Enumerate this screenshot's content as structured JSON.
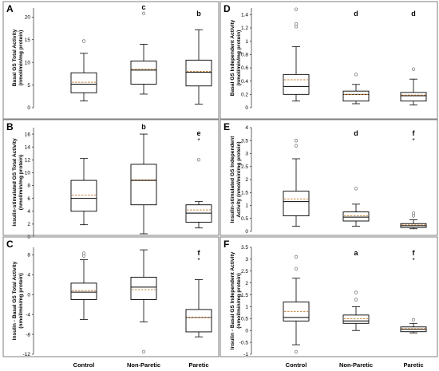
{
  "chart_data": [
    {
      "panel": "A",
      "type": "box",
      "ylabel": [
        "Basal GS Total Activity",
        "(nmol/min/mg protein)"
      ],
      "ylim": [
        0,
        22
      ],
      "yticks": [
        0,
        5,
        10,
        15,
        20
      ],
      "categories": [
        "Control",
        "Non-Paretic",
        "Paretic"
      ],
      "boxes": [
        {
          "whislo": 1.5,
          "q1": 3.3,
          "med": 5.2,
          "q3": 7.7,
          "whishi": 12.0,
          "mean": 5.6,
          "fliers": [
            14.7
          ],
          "sig": "",
          "star": false
        },
        {
          "whislo": 3.0,
          "q1": 5.2,
          "med": 8.3,
          "q3": 10.3,
          "whishi": 14.0,
          "mean": 8.5,
          "fliers": [
            20.8
          ],
          "sig": "c",
          "star": false
        },
        {
          "whislo": 0.8,
          "q1": 4.8,
          "med": 7.8,
          "q3": 10.5,
          "whishi": 17.2,
          "mean": 8.0,
          "fliers": [],
          "sig": "b",
          "star": false
        }
      ]
    },
    {
      "panel": "B",
      "type": "box",
      "ylabel": [
        "Insulin-stimulated GS Total Activity",
        "(nmol/min/mg protein)"
      ],
      "ylim": [
        0,
        17
      ],
      "yticks": [
        0,
        2,
        4,
        6,
        8,
        10,
        12,
        14,
        16
      ],
      "categories": [
        "Control",
        "Non-Paretic",
        "Paretic"
      ],
      "boxes": [
        {
          "whislo": 1.9,
          "q1": 4.0,
          "med": 6.0,
          "q3": 8.8,
          "whishi": 12.2,
          "mean": 6.5,
          "fliers": [],
          "sig": "",
          "star": false
        },
        {
          "whislo": 0.5,
          "q1": 5.0,
          "med": 8.8,
          "q3": 11.3,
          "whishi": 16.0,
          "mean": 8.9,
          "fliers": [],
          "sig": "b",
          "star": false
        },
        {
          "whislo": 1.4,
          "q1": 2.3,
          "med": 3.7,
          "q3": 5.0,
          "whishi": 5.5,
          "mean": 4.2,
          "fliers": [
            12.0
          ],
          "sig": "e",
          "star": true
        }
      ]
    },
    {
      "panel": "C",
      "type": "box",
      "ylabel": [
        "Insulin - Basal GS Total Activity",
        "(nmol/min/mg protein)"
      ],
      "ylim": [
        -12,
        9.5
      ],
      "yticks": [
        -12,
        -8,
        -4,
        0,
        4,
        8
      ],
      "categories": [
        "Control",
        "Non-Paretic",
        "Paretic"
      ],
      "boxes": [
        {
          "whislo": -5.0,
          "q1": -1.0,
          "med": 0.5,
          "q3": 2.3,
          "whishi": 7.0,
          "mean": 0.8,
          "fliers": [
            7.8,
            8.3
          ],
          "sig": "",
          "star": false
        },
        {
          "whislo": -5.5,
          "q1": -1.0,
          "med": 1.5,
          "q3": 3.5,
          "whishi": 9.0,
          "mean": 1.0,
          "fliers": [
            -11.5
          ],
          "sig": "",
          "star": false
        },
        {
          "whislo": -8.5,
          "q1": -7.5,
          "med": -4.6,
          "q3": -3.0,
          "whishi": 3.0,
          "mean": -4.6,
          "fliers": [],
          "sig": "f",
          "star": true
        }
      ]
    },
    {
      "panel": "D",
      "type": "box",
      "ylabel": [
        "Basal GS Independent Activity",
        "(nmol/min/mg protein)"
      ],
      "ylim": [
        0,
        1.5
      ],
      "yticks": [
        0,
        0.2,
        0.4,
        0.6,
        0.8,
        1,
        1.2,
        1.4
      ],
      "categories": [
        "Control",
        "Non-Paretic",
        "Paretic"
      ],
      "boxes": [
        {
          "whislo": 0.1,
          "q1": 0.2,
          "med": 0.32,
          "q3": 0.5,
          "whishi": 0.92,
          "mean": 0.42,
          "fliers": [
            1.22,
            1.26,
            1.48
          ],
          "sig": "",
          "star": false
        },
        {
          "whislo": 0.06,
          "q1": 0.1,
          "med": 0.2,
          "q3": 0.25,
          "whishi": 0.35,
          "mean": 0.2,
          "fliers": [
            0.5
          ],
          "sig": "d",
          "star": false
        },
        {
          "whislo": 0.04,
          "q1": 0.1,
          "med": 0.18,
          "q3": 0.23,
          "whishi": 0.43,
          "mean": 0.19,
          "fliers": [
            0.58
          ],
          "sig": "d",
          "star": false
        }
      ]
    },
    {
      "panel": "E",
      "type": "box",
      "ylabel": [
        "Insulin-stimulated GS Independent",
        "Activity (nmol/min/mg protein)"
      ],
      "ylim": [
        0,
        4
      ],
      "yticks": [
        0,
        0.5,
        1,
        1.5,
        2,
        2.5,
        3,
        3.5,
        4
      ],
      "categories": [
        "Control",
        "Non-Paretic",
        "Paretic"
      ],
      "boxes": [
        {
          "whislo": 0.2,
          "q1": 0.6,
          "med": 1.15,
          "q3": 1.55,
          "whishi": 2.8,
          "mean": 1.25,
          "fliers": [
            3.3,
            3.5
          ],
          "sig": "",
          "star": false
        },
        {
          "whislo": 0.2,
          "q1": 0.4,
          "med": 0.55,
          "q3": 0.75,
          "whishi": 1.05,
          "mean": 0.6,
          "fliers": [
            1.65
          ],
          "sig": "d",
          "star": false
        },
        {
          "whislo": 0.1,
          "q1": 0.15,
          "med": 0.22,
          "q3": 0.3,
          "whishi": 0.45,
          "mean": 0.25,
          "fliers": [
            0.6,
            0.7
          ],
          "sig": "f",
          "star": true
        }
      ]
    },
    {
      "panel": "F",
      "type": "box",
      "ylabel": [
        "Insulin - Basal GS Independent Activity",
        "(nmol/min/mg protein)"
      ],
      "ylim": [
        -1,
        3.5
      ],
      "yticks": [
        -1,
        -0.5,
        0,
        0.5,
        1,
        1.5,
        2,
        2.5,
        3,
        3.5
      ],
      "categories": [
        "Control",
        "Non-Paretic",
        "Paretic"
      ],
      "boxes": [
        {
          "whislo": -0.6,
          "q1": 0.4,
          "med": 0.55,
          "q3": 1.2,
          "whishi": 2.2,
          "mean": 0.8,
          "fliers": [
            2.6,
            3.1,
            -0.9
          ],
          "sig": "",
          "star": false
        },
        {
          "whislo": 0.0,
          "q1": 0.3,
          "med": 0.4,
          "q3": 0.65,
          "whishi": 1.0,
          "mean": 0.5,
          "fliers": [
            1.3,
            1.6
          ],
          "sig": "a",
          "star": false
        },
        {
          "whislo": -0.1,
          "q1": -0.05,
          "med": 0.05,
          "q3": 0.15,
          "whishi": 0.3,
          "mean": 0.08,
          "fliers": [
            0.45
          ],
          "sig": "f",
          "star": true
        }
      ]
    }
  ],
  "x_labels": [
    "Control",
    "Non-Paretic",
    "Paretic"
  ],
  "colors": {
    "mean_line": "#c9843a",
    "box": "#000000",
    "frame": "#7f7f7f"
  }
}
